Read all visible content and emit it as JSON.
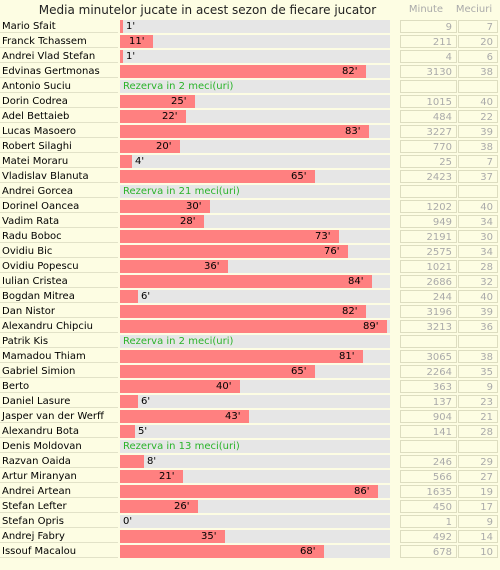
{
  "header": {
    "title": "Media minutelor jucate in acest sezon de fiecare jucator",
    "col_minute": "Minute",
    "col_meciuri": "Meciuri"
  },
  "colors": {
    "bar": "#ff8080",
    "track": "#e6e6e6",
    "reserve_text": "#2ab32a",
    "background": "#fdfde3"
  },
  "scale_max_minutes": 90,
  "players": [
    {
      "name": "Mario Sfait",
      "avg": "1'",
      "avg_value": 1,
      "minutes": "9",
      "matches": "7"
    },
    {
      "name": "Franck Tchassem",
      "avg": "11'",
      "avg_value": 11,
      "minutes": "211",
      "matches": "20"
    },
    {
      "name": "Andrei Vlad Stefan",
      "avg": "1'",
      "avg_value": 1,
      "minutes": "4",
      "matches": "6"
    },
    {
      "name": "Edvinas Gertmonas",
      "avg": "82'",
      "avg_value": 82,
      "minutes": "3130",
      "matches": "38"
    },
    {
      "name": "Antonio Suciu",
      "reserve": "Rezerva in 2 meci(uri)",
      "minutes": "",
      "matches": ""
    },
    {
      "name": "Dorin Codrea",
      "avg": "25'",
      "avg_value": 25,
      "minutes": "1015",
      "matches": "40"
    },
    {
      "name": "Adel Bettaieb",
      "avg": "22'",
      "avg_value": 22,
      "minutes": "484",
      "matches": "22"
    },
    {
      "name": "Lucas Masoero",
      "avg": "83'",
      "avg_value": 83,
      "minutes": "3227",
      "matches": "39"
    },
    {
      "name": "Robert Silaghi",
      "avg": "20'",
      "avg_value": 20,
      "minutes": "770",
      "matches": "38"
    },
    {
      "name": "Matei Moraru",
      "avg": "4'",
      "avg_value": 4,
      "minutes": "25",
      "matches": "7"
    },
    {
      "name": "Vladislav Blanuta",
      "avg": "65'",
      "avg_value": 65,
      "minutes": "2423",
      "matches": "37"
    },
    {
      "name": "Andrei Gorcea",
      "reserve": "Rezerva in 21 meci(uri)",
      "minutes": "",
      "matches": ""
    },
    {
      "name": "Dorinel Oancea",
      "avg": "30'",
      "avg_value": 30,
      "minutes": "1202",
      "matches": "40"
    },
    {
      "name": "Vadim Rata",
      "avg": "28'",
      "avg_value": 28,
      "minutes": "949",
      "matches": "34"
    },
    {
      "name": "Radu Boboc",
      "avg": "73'",
      "avg_value": 73,
      "minutes": "2191",
      "matches": "30"
    },
    {
      "name": "Ovidiu Bic",
      "avg": "76'",
      "avg_value": 76,
      "minutes": "2575",
      "matches": "34"
    },
    {
      "name": "Ovidiu Popescu",
      "avg": "36'",
      "avg_value": 36,
      "minutes": "1021",
      "matches": "28"
    },
    {
      "name": "Iulian Cristea",
      "avg": "84'",
      "avg_value": 84,
      "minutes": "2686",
      "matches": "32"
    },
    {
      "name": "Bogdan Mitrea",
      "avg": "6'",
      "avg_value": 6,
      "minutes": "244",
      "matches": "40"
    },
    {
      "name": "Dan Nistor",
      "avg": "82'",
      "avg_value": 82,
      "minutes": "3196",
      "matches": "39"
    },
    {
      "name": "Alexandru Chipciu",
      "avg": "89'",
      "avg_value": 89,
      "minutes": "3213",
      "matches": "36"
    },
    {
      "name": "Patrik Kis",
      "reserve": "Rezerva in 2 meci(uri)",
      "minutes": "",
      "matches": ""
    },
    {
      "name": "Mamadou Thiam",
      "avg": "81'",
      "avg_value": 81,
      "minutes": "3065",
      "matches": "38"
    },
    {
      "name": "Gabriel Simion",
      "avg": "65'",
      "avg_value": 65,
      "minutes": "2264",
      "matches": "35"
    },
    {
      "name": "Berto",
      "avg": "40'",
      "avg_value": 40,
      "minutes": "363",
      "matches": "9"
    },
    {
      "name": "Daniel Lasure",
      "avg": "6'",
      "avg_value": 6,
      "minutes": "137",
      "matches": "23"
    },
    {
      "name": "Jasper van der Werff",
      "avg": "43'",
      "avg_value": 43,
      "minutes": "904",
      "matches": "21"
    },
    {
      "name": "Alexandru Bota",
      "avg": "5'",
      "avg_value": 5,
      "minutes": "141",
      "matches": "28"
    },
    {
      "name": "Denis Moldovan",
      "reserve": "Rezerva in 13 meci(uri)",
      "minutes": "",
      "matches": ""
    },
    {
      "name": "Razvan Oaida",
      "avg": "8'",
      "avg_value": 8,
      "minutes": "246",
      "matches": "29"
    },
    {
      "name": "Artur Miranyan",
      "avg": "21'",
      "avg_value": 21,
      "minutes": "566",
      "matches": "27"
    },
    {
      "name": "Andrei Artean",
      "avg": "86'",
      "avg_value": 86,
      "minutes": "1635",
      "matches": "19"
    },
    {
      "name": "Stefan Lefter",
      "avg": "26'",
      "avg_value": 26,
      "minutes": "450",
      "matches": "17"
    },
    {
      "name": "Stefan Opris",
      "avg": "0'",
      "avg_value": 0,
      "minutes": "1",
      "matches": "9"
    },
    {
      "name": "Andrej Fabry",
      "avg": "35'",
      "avg_value": 35,
      "minutes": "492",
      "matches": "14"
    },
    {
      "name": "Issouf Macalou",
      "avg": "68'",
      "avg_value": 68,
      "minutes": "678",
      "matches": "10"
    }
  ]
}
